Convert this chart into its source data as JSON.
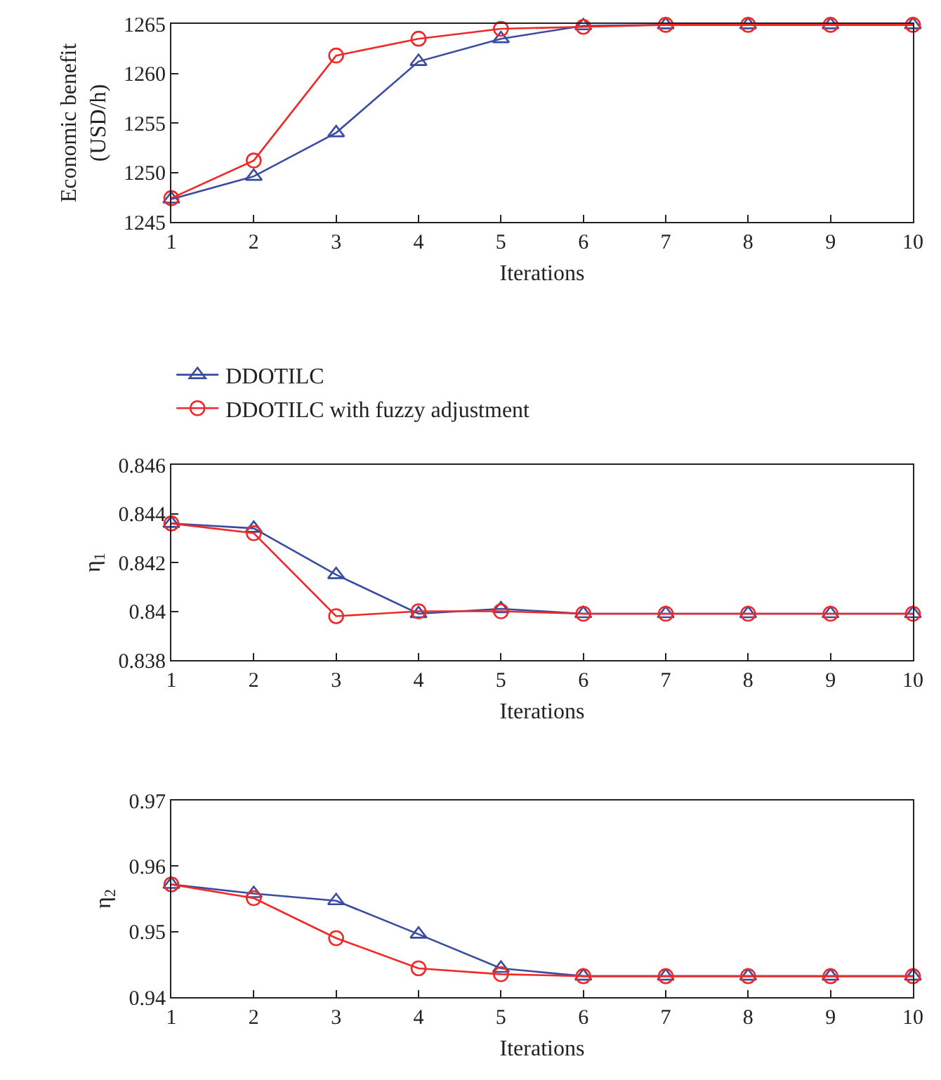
{
  "chart_data": [
    {
      "type": "line",
      "xlabel": "Iterations",
      "ylabel": "Economic benefit\n(USD/h)",
      "x": [
        1,
        2,
        3,
        4,
        5,
        6,
        7,
        8,
        9,
        10
      ],
      "xlim": [
        1,
        10
      ],
      "xticks": [
        1,
        2,
        3,
        4,
        5,
        6,
        7,
        8,
        9,
        10
      ],
      "ylim": [
        1245,
        1265
      ],
      "yticks": [
        1245,
        1250,
        1255,
        1260,
        1265
      ],
      "legend": "bottom",
      "series": [
        {
          "name": "DDOTILC",
          "color": "#3a4ca0",
          "marker": "triangle",
          "values": [
            1247.3,
            1249.6,
            1254.0,
            1261.2,
            1263.5,
            1264.8,
            1264.9,
            1264.9,
            1264.9,
            1264.9
          ]
        },
        {
          "name": "DDOTILC with fuzzy adjustment",
          "color": "#f02828",
          "marker": "circle",
          "values": [
            1247.4,
            1251.2,
            1261.8,
            1263.5,
            1264.5,
            1264.7,
            1264.9,
            1264.9,
            1264.9,
            1264.9
          ]
        }
      ]
    },
    {
      "type": "line",
      "xlabel": "Iterations",
      "ylabel": "η$_{1}$",
      "x": [
        1,
        2,
        3,
        4,
        5,
        6,
        7,
        8,
        9,
        10
      ],
      "xlim": [
        1,
        10
      ],
      "xticks": [
        1,
        2,
        3,
        4,
        5,
        6,
        7,
        8,
        9,
        10
      ],
      "ylim": [
        0.838,
        0.846
      ],
      "yticks": [
        0.838,
        0.84,
        0.842,
        0.844,
        0.846
      ],
      "legend": false,
      "series": [
        {
          "color": "#3a4ca0",
          "marker": "triangle",
          "values": [
            0.8436,
            0.8434,
            0.8415,
            0.8399,
            0.8401,
            0.8399,
            0.8399,
            0.8399,
            0.8399,
            0.8399
          ]
        },
        {
          "color": "#f02828",
          "marker": "circle",
          "values": [
            0.8436,
            0.8432,
            0.8398,
            0.84,
            0.84,
            0.8399,
            0.8399,
            0.8399,
            0.8399,
            0.8399
          ]
        }
      ]
    },
    {
      "type": "line",
      "xlabel": "Iterations",
      "ylabel": "η$_{2}$",
      "x": [
        1,
        2,
        3,
        4,
        5,
        6,
        7,
        8,
        9,
        10
      ],
      "xlim": [
        1,
        10
      ],
      "xticks": [
        1,
        2,
        3,
        4,
        5,
        6,
        7,
        8,
        9,
        10
      ],
      "ylim": [
        0.94,
        0.97
      ],
      "yticks": [
        0.94,
        0.95,
        0.96,
        0.97
      ],
      "legend": false,
      "series": [
        {
          "color": "#3a4ca0",
          "marker": "triangle",
          "values": [
            0.9572,
            0.9558,
            0.9547,
            0.9496,
            0.9444,
            0.9432,
            0.9432,
            0.9432,
            0.9432,
            0.9432
          ]
        },
        {
          "color": "#f02828",
          "marker": "circle",
          "values": [
            0.9572,
            0.9551,
            0.949,
            0.9444,
            0.9435,
            0.9432,
            0.9432,
            0.9432,
            0.9432,
            0.9432
          ]
        }
      ]
    }
  ]
}
